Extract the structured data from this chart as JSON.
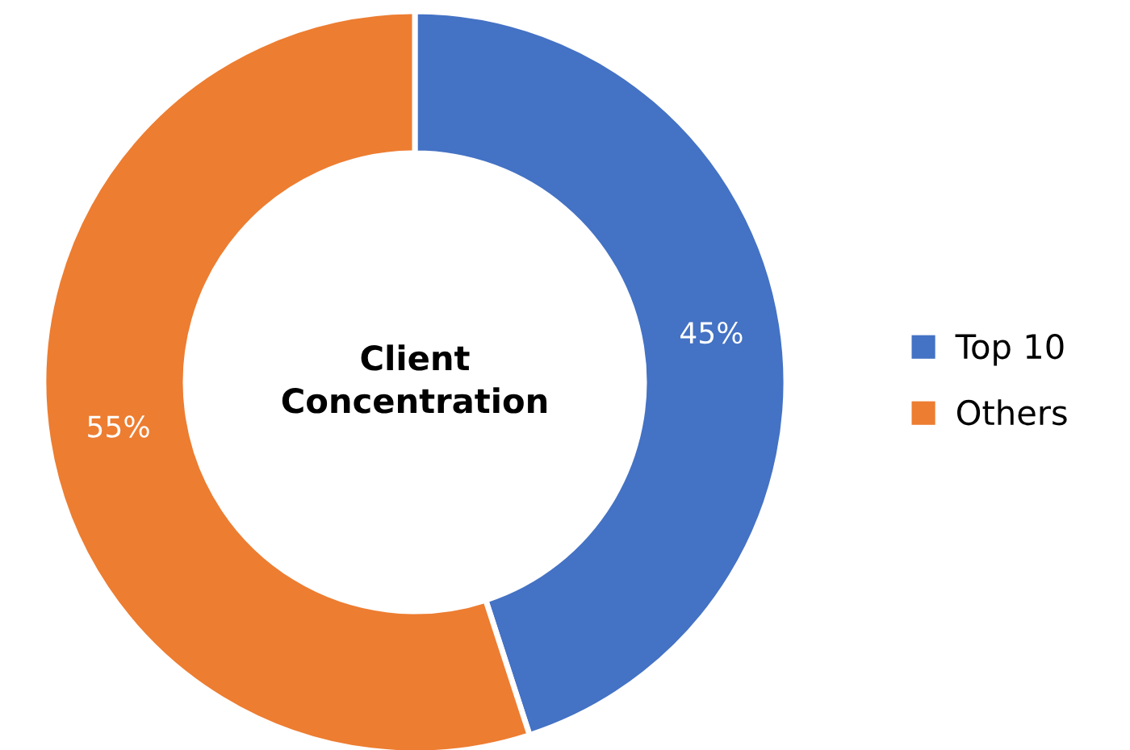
{
  "chart_data": {
    "type": "donut",
    "title": "Client Concentration",
    "categories": [
      "Top 10",
      "Others"
    ],
    "values": [
      45,
      55
    ],
    "colors": [
      "#4472c4",
      "#ed7d31"
    ],
    "value_labels": [
      "45%",
      "55%"
    ],
    "legend": "right"
  }
}
